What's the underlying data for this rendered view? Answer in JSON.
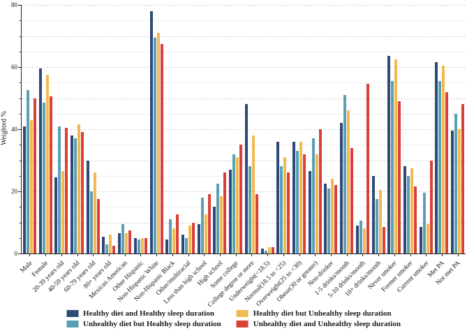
{
  "figure": {
    "ylabel": "Weighted %",
    "y_ticks": [
      0,
      20,
      40,
      60,
      80
    ],
    "ymax": 80
  },
  "legend": {
    "items": [
      {
        "label": "Healthy diet and Healthy sleep duration",
        "color": "#2d4a77"
      },
      {
        "label": "Healthy diet but Unhealthy sleep duration",
        "color": "#f2b950"
      },
      {
        "label": "Unhealthy diet but Healthy sleep duration",
        "color": "#5c9fb5"
      },
      {
        "label": "Unhealthy diet and Unhealthy sleep duration",
        "color": "#da4038"
      }
    ]
  },
  "chart_data": {
    "type": "bar",
    "title": "",
    "xlabel": "",
    "ylabel": "Weighted %",
    "ylim": [
      0,
      80
    ],
    "grid": true,
    "legend_position": "bottom",
    "categories": [
      "Male",
      "Female",
      "20-39 years old",
      "40-59 years old",
      "60-79 years old",
      "80+ years old",
      "Mexican American",
      "Other Hispanic",
      "Non-Hispanic White",
      "Non-Hispanic Black",
      "Other/multiracial",
      "Less than high school",
      "High school",
      "Some college",
      "College degree or more",
      "Underweight(<18.5)",
      "Normal(18.5 to <25)",
      "Overweight(25 to <30)",
      "Obese(30 or greater)",
      "Non-drinker",
      "1-5 drinks/month",
      "5-10 drinks/month",
      "10+ drinks/month",
      "Never smoker",
      "Former smoker",
      "Current smoker",
      "Met PA",
      "Not met PA"
    ],
    "series": [
      {
        "name": "Healthy diet and Healthy sleep duration",
        "color": "#2d4a77",
        "values": [
          41,
          59.5,
          24.5,
          38,
          30,
          5.5,
          6.5,
          5,
          78,
          4.5,
          6,
          9.5,
          15,
          27,
          48,
          1.5,
          36,
          36,
          26.5,
          22.5,
          42,
          9,
          25,
          63.5,
          28,
          8.5,
          61.5,
          39.5
        ]
      },
      {
        "name": "Unhealthy diet but Healthy sleep duration",
        "color": "#5c9fb5",
        "values": [
          52.5,
          48.5,
          41,
          37,
          20,
          3,
          9.5,
          4.5,
          69.5,
          11,
          5,
          18,
          22.5,
          32,
          28,
          1,
          28,
          33,
          37,
          21,
          51,
          10.5,
          17.5,
          55.5,
          25,
          19.5,
          55.5,
          45
        ]
      },
      {
        "name": "Healthy diet but Unhealthy sleep duration",
        "color": "#f2b950",
        "values": [
          43,
          57.5,
          26.5,
          41.5,
          26,
          6,
          6.5,
          5,
          71,
          8,
          9,
          12.5,
          18.5,
          31,
          38,
          2,
          31,
          36,
          32,
          24,
          46,
          8,
          20.5,
          62.5,
          27.5,
          9.5,
          60.5,
          40
        ]
      },
      {
        "name": "Unhealthy diet and Unhealthy sleep duration",
        "color": "#da4038",
        "values": [
          50,
          50.5,
          40.5,
          39,
          17.5,
          2.5,
          7.5,
          5,
          67.5,
          12.5,
          10,
          19,
          26,
          35,
          19,
          2,
          26,
          32,
          40,
          22,
          34,
          54.5,
          8.5,
          49,
          21.5,
          30,
          52,
          48
        ]
      }
    ]
  }
}
